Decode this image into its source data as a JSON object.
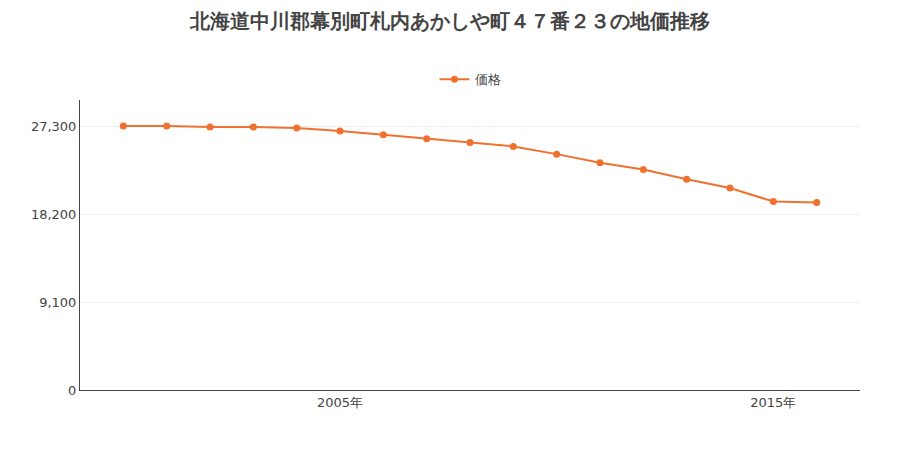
{
  "chart_data": {
    "type": "line",
    "title": "北海道中川郡幕別町札内あかしや町４７番２３の地価推移",
    "x": [
      2000,
      2001,
      2002,
      2003,
      2004,
      2005,
      2006,
      2007,
      2008,
      2009,
      2010,
      2011,
      2012,
      2013,
      2014,
      2015,
      2016
    ],
    "series": [
      {
        "name": "価格",
        "color": "#f07030",
        "marker": "circle",
        "line_style": "solid",
        "values": [
          27300,
          27300,
          27200,
          27200,
          27100,
          26800,
          26400,
          26000,
          25600,
          25200,
          24400,
          23500,
          22800,
          21800,
          20900,
          19500,
          19400
        ]
      }
    ],
    "xlim": [
      1999,
      2017
    ],
    "xticks": [
      {
        "value": 2005,
        "label": "2005年"
      },
      {
        "value": 2015,
        "label": "2015年"
      }
    ],
    "ylim": [
      0,
      30000
    ],
    "yticks": [
      0,
      {
        "value": 9100,
        "label": "9,100"
      },
      {
        "value": 18200,
        "label": "18,200"
      },
      {
        "value": 27300,
        "label": "27,300"
      }
    ],
    "grid": "y",
    "legend": "top"
  }
}
